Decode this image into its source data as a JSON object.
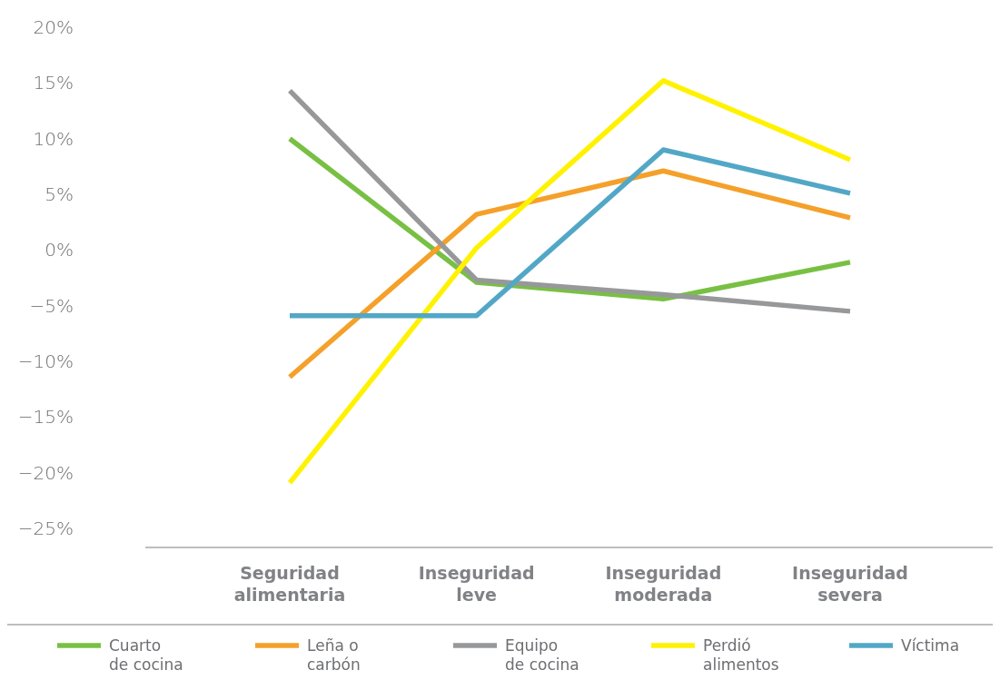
{
  "chart_data": {
    "type": "line",
    "categories": [
      "Seguridad alimentaria",
      "Inseguridad leve",
      "Inseguridad moderada",
      "Inseguridad severa"
    ],
    "series": [
      {
        "name": "Cuarto de cocina",
        "color": "#78c043",
        "values": [
          10,
          -2.9,
          -4.4,
          -1.1
        ]
      },
      {
        "name": "Leña o carbón",
        "color": "#f5a02a",
        "values": [
          -11.4,
          3.2,
          7.1,
          2.9
        ]
      },
      {
        "name": "Equipo de cocina",
        "color": "#97989a",
        "values": [
          14.3,
          -2.7,
          -4,
          -5.5
        ]
      },
      {
        "name": "Perdió alimentos",
        "color": "#fff200",
        "values": [
          -20.9,
          0.2,
          15.2,
          8.1
        ]
      },
      {
        "name": "Víctima",
        "color": "#52a7c6",
        "values": [
          -5.9,
          -5.9,
          9,
          5.1
        ]
      }
    ],
    "ylim": [
      -26.7,
      20
    ],
    "yticks": [
      {
        "value": -25,
        "label": "−25%"
      },
      {
        "value": -20,
        "label": "−20%"
      },
      {
        "value": -15,
        "label": "−15%"
      },
      {
        "value": -10,
        "label": "−10%"
      },
      {
        "value": -5,
        "label": "−5%"
      },
      {
        "value": 0,
        "label": "0%"
      },
      {
        "value": 5,
        "label": "5%"
      },
      {
        "value": 10,
        "label": "10%"
      },
      {
        "value": 15,
        "label": "15%"
      },
      {
        "value": 20,
        "label": "20%"
      }
    ],
    "grid": false,
    "legend": "bottom",
    "marker": "none",
    "line_style": "solid"
  }
}
